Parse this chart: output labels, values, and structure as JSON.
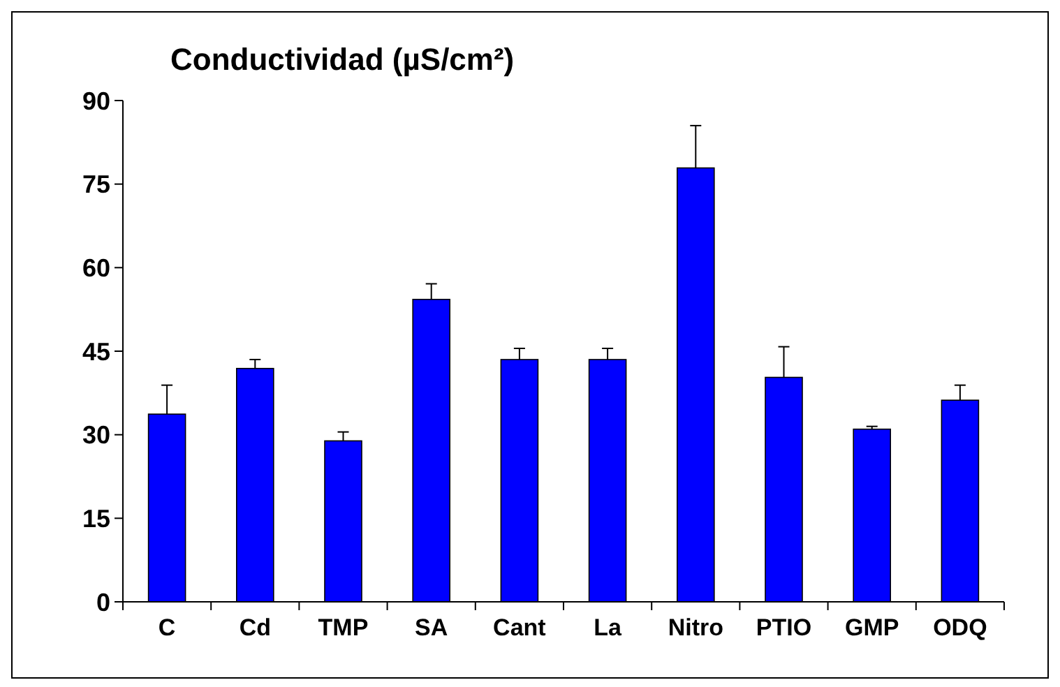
{
  "chart_data": {
    "type": "bar",
    "title": "Conductividad (µS/cm²)",
    "categories": [
      "C",
      "Cd",
      "TMP",
      "SA",
      "Cant",
      "La",
      "Nitro",
      "PTIO",
      "GMP",
      "ODQ"
    ],
    "values": [
      33.7,
      41.9,
      28.9,
      54.3,
      43.5,
      43.5,
      77.9,
      40.3,
      31.0,
      36.2
    ],
    "errors": [
      [
        33.7,
        38.9
      ],
      [
        41.9,
        43.5
      ],
      [
        28.9,
        30.5
      ],
      [
        54.3,
        57.1
      ],
      [
        43.5,
        45.5
      ],
      [
        43.5,
        45.5
      ],
      [
        77.9,
        85.5
      ],
      [
        40.3,
        45.8
      ],
      [
        31.0,
        31.5
      ],
      [
        36.2,
        38.9
      ]
    ],
    "color": "#0000ff",
    "ylim": [
      0,
      90
    ],
    "yticks": [
      0,
      15,
      30,
      45,
      60,
      75,
      90
    ],
    "grid": false
  }
}
